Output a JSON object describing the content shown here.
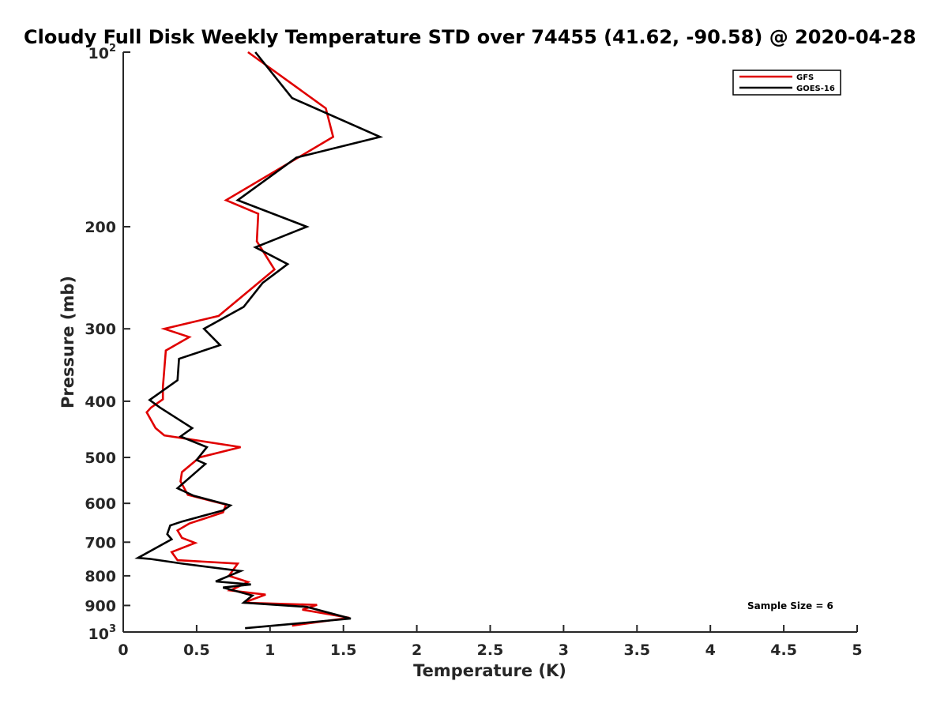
{
  "chart_data": {
    "type": "line",
    "title": "Cloudy Full Disk Weekly Temperature STD over 74455 (41.62, -90.58) @ 2020-04-28",
    "xlabel": "Temperature (K)",
    "ylabel": "Pressure (mb)",
    "xlim": [
      0,
      5
    ],
    "ylim": [
      100,
      1000
    ],
    "y_scale": "log",
    "y_reversed": true,
    "x_ticks": [
      "0",
      "0.5",
      "1",
      "1.5",
      "2",
      "2.5",
      "3",
      "3.5",
      "4",
      "4.5",
      "5"
    ],
    "x_tick_values": [
      0,
      0.5,
      1,
      1.5,
      2,
      2.5,
      3,
      3.5,
      4,
      4.5,
      5
    ],
    "y_tick_values": [
      200,
      300,
      400,
      500,
      600,
      700,
      800,
      900
    ],
    "y_ticks": [
      "200",
      "300",
      "400",
      "500",
      "600",
      "700",
      "800",
      "900"
    ],
    "y_edge_ticks": {
      "top": {
        "base": "10",
        "exp": "2"
      },
      "bottom": {
        "base": "10",
        "exp": "3"
      }
    },
    "grid": false,
    "legend_position": "top-right",
    "annotation": "Sample Size = 6",
    "series": [
      {
        "name": "GFS",
        "color": "#e00000",
        "points": [
          [
            0.85,
            100
          ],
          [
            1.38,
            125
          ],
          [
            1.43,
            140
          ],
          [
            0.7,
            180
          ],
          [
            0.92,
            190
          ],
          [
            0.91,
            212
          ],
          [
            1.03,
            237
          ],
          [
            0.65,
            285
          ],
          [
            0.28,
            300
          ],
          [
            0.45,
            310
          ],
          [
            0.29,
            327
          ],
          [
            0.27,
            378
          ],
          [
            0.27,
            397
          ],
          [
            0.19,
            410
          ],
          [
            0.16,
            418
          ],
          [
            0.22,
            445
          ],
          [
            0.28,
            458
          ],
          [
            0.8,
            480
          ],
          [
            0.52,
            500
          ],
          [
            0.4,
            530
          ],
          [
            0.39,
            550
          ],
          [
            0.44,
            580
          ],
          [
            0.7,
            603
          ],
          [
            0.68,
            622
          ],
          [
            0.45,
            650
          ],
          [
            0.37,
            668
          ],
          [
            0.4,
            688
          ],
          [
            0.49,
            702
          ],
          [
            0.33,
            728
          ],
          [
            0.37,
            752
          ],
          [
            0.78,
            762
          ],
          [
            0.72,
            800
          ],
          [
            0.85,
            820
          ],
          [
            0.73,
            848
          ],
          [
            0.97,
            862
          ],
          [
            0.82,
            890
          ],
          [
            1.32,
            898
          ],
          [
            1.22,
            915
          ],
          [
            1.54,
            945
          ],
          [
            1.15,
            975
          ]
        ]
      },
      {
        "name": "GOES-16",
        "color": "#000000",
        "points": [
          [
            0.9,
            100
          ],
          [
            1.15,
            120
          ],
          [
            1.75,
            140
          ],
          [
            1.18,
            152
          ],
          [
            0.78,
            180
          ],
          [
            1.25,
            200
          ],
          [
            0.9,
            217
          ],
          [
            1.12,
            232
          ],
          [
            0.95,
            250
          ],
          [
            0.82,
            275
          ],
          [
            0.55,
            300
          ],
          [
            0.66,
            320
          ],
          [
            0.38,
            338
          ],
          [
            0.37,
            368
          ],
          [
            0.18,
            398
          ],
          [
            0.25,
            410
          ],
          [
            0.47,
            445
          ],
          [
            0.39,
            460
          ],
          [
            0.57,
            480
          ],
          [
            0.5,
            505
          ],
          [
            0.56,
            513
          ],
          [
            0.37,
            565
          ],
          [
            0.48,
            582
          ],
          [
            0.73,
            605
          ],
          [
            0.68,
            617
          ],
          [
            0.4,
            645
          ],
          [
            0.32,
            655
          ],
          [
            0.3,
            678
          ],
          [
            0.33,
            692
          ],
          [
            0.1,
            745
          ],
          [
            0.18,
            748
          ],
          [
            0.4,
            762
          ],
          [
            0.8,
            785
          ],
          [
            0.63,
            818
          ],
          [
            0.87,
            828
          ],
          [
            0.68,
            838
          ],
          [
            0.88,
            865
          ],
          [
            0.82,
            890
          ],
          [
            1.25,
            905
          ],
          [
            1.55,
            948
          ],
          [
            0.83,
            985
          ]
        ]
      }
    ]
  }
}
